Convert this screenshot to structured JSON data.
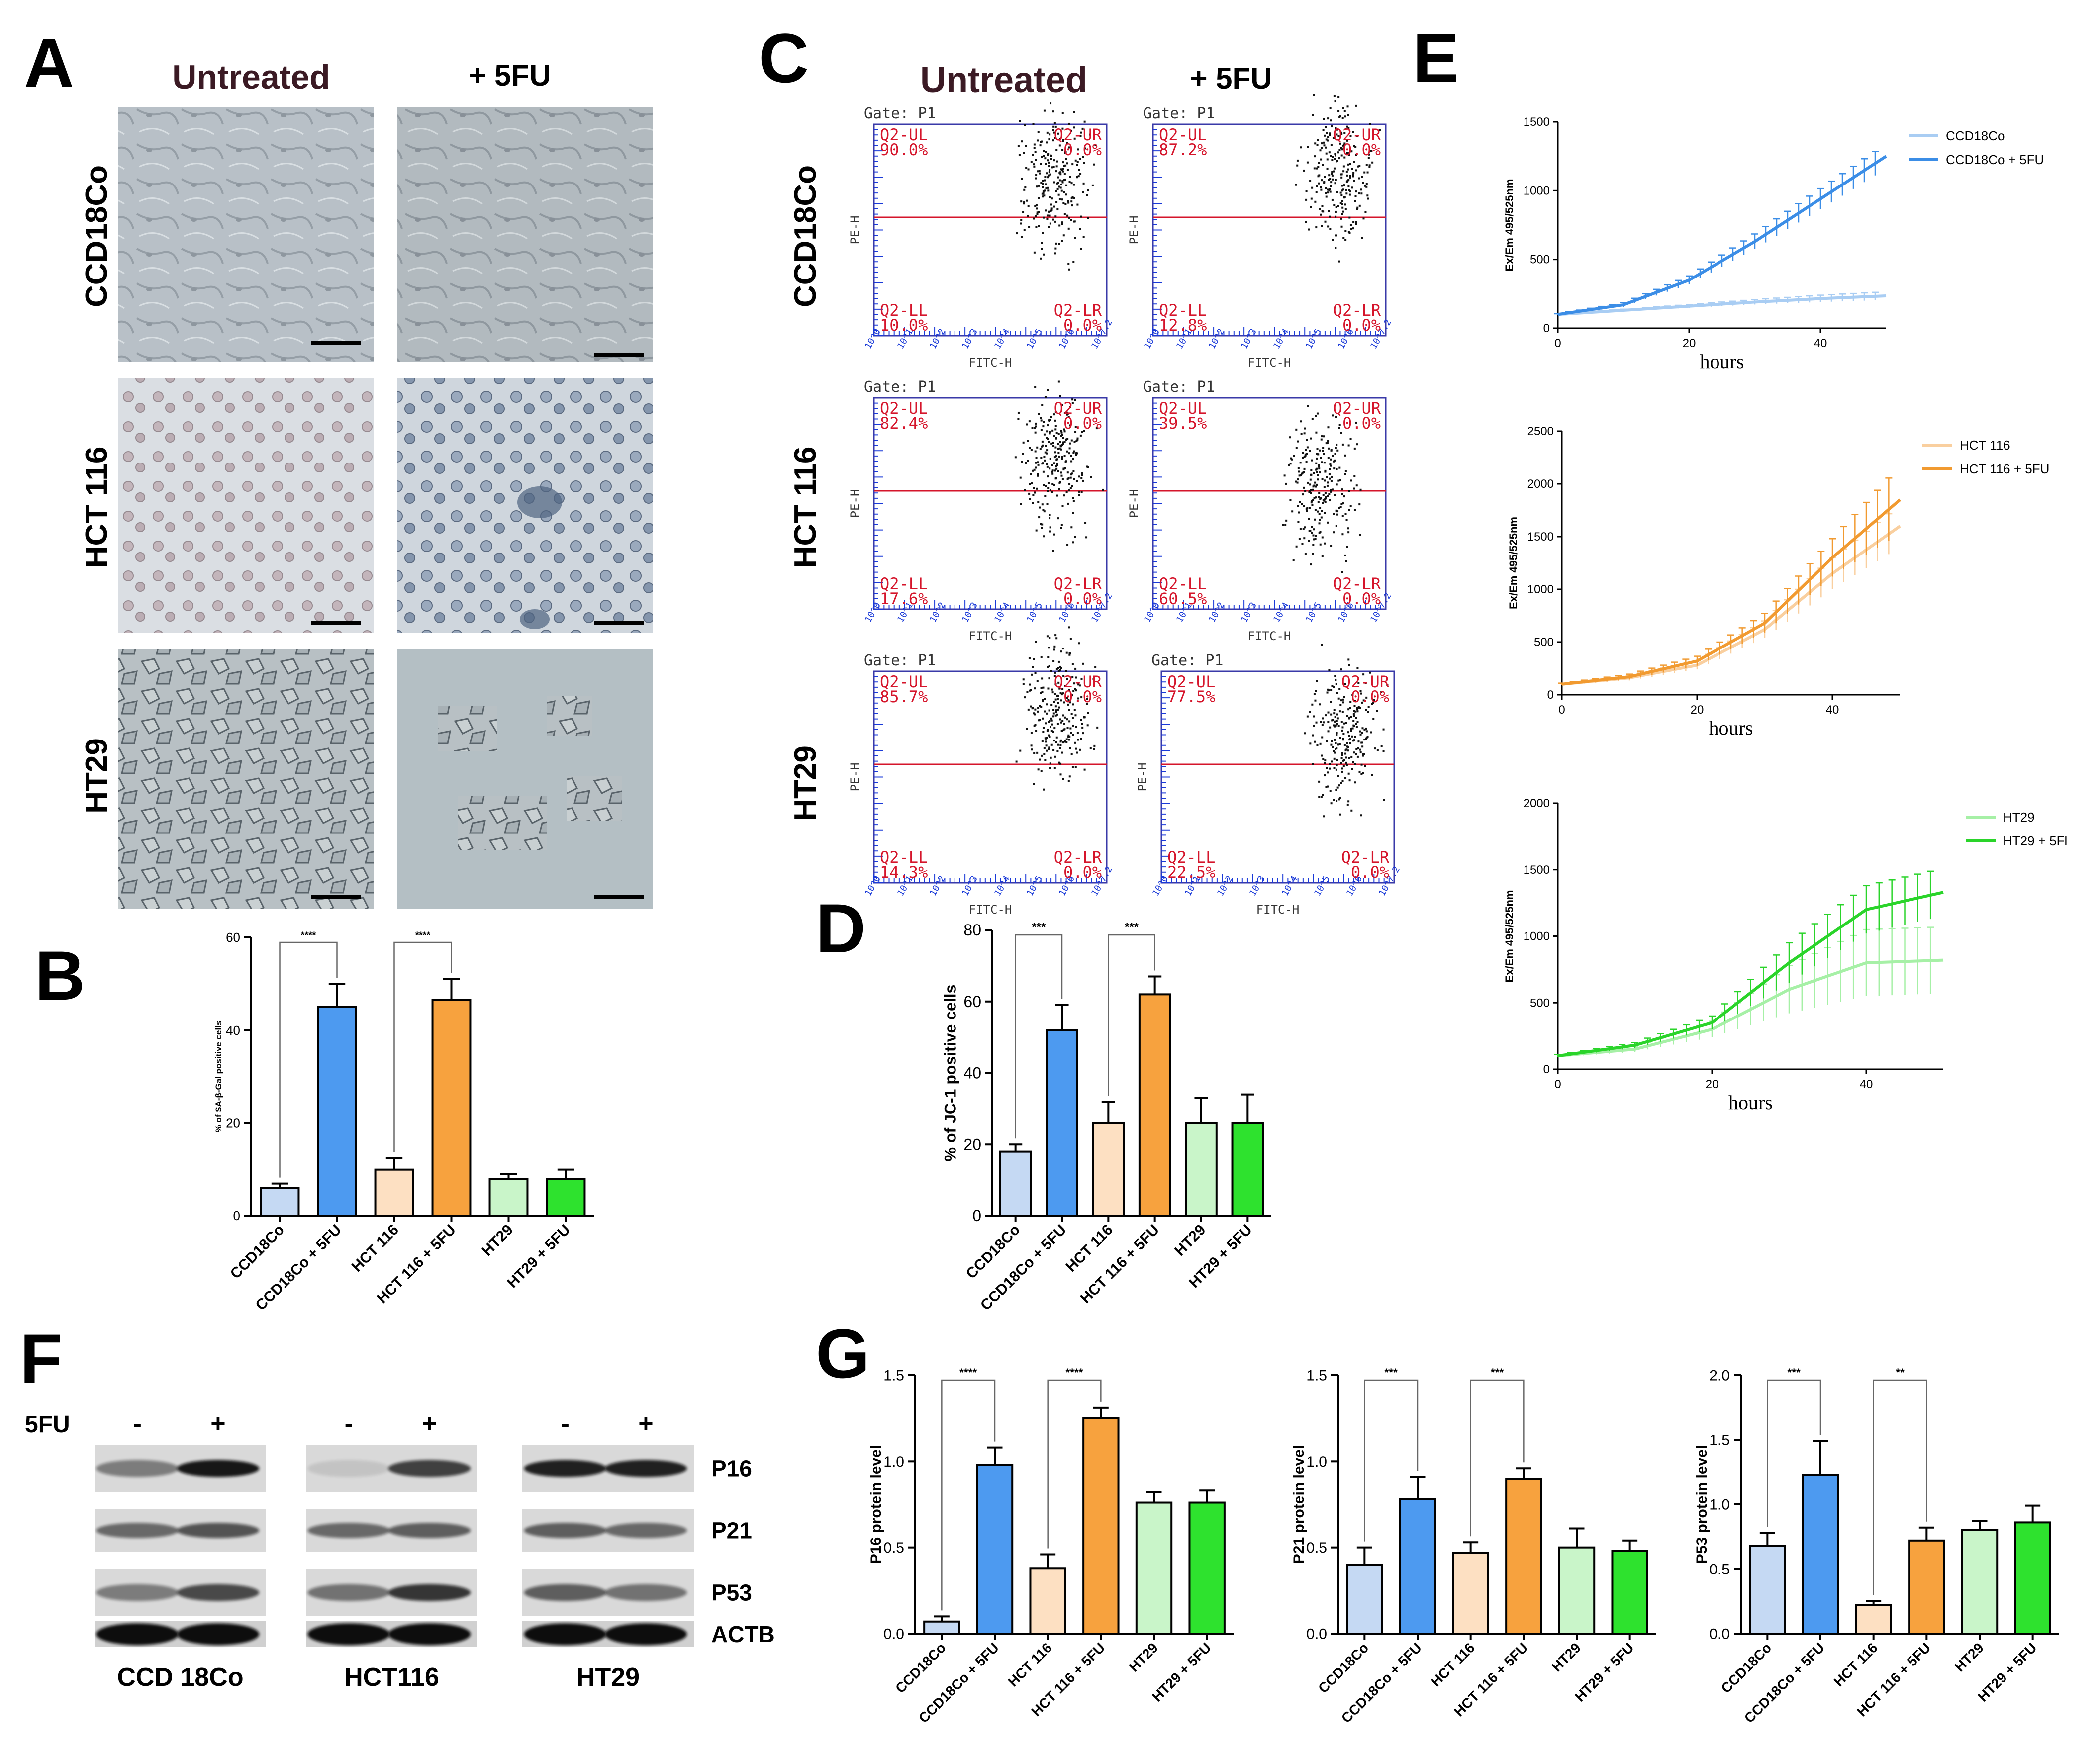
{
  "panels": {
    "A": {
      "letter": "A",
      "col_headers": [
        "Untreated",
        "+ 5FU"
      ],
      "row_labels": [
        "CCD18Co",
        "HCT 116",
        "HT29"
      ]
    },
    "B": {
      "letter": "B"
    },
    "C": {
      "letter": "C",
      "col_headers": [
        "Untreated",
        "+ 5FU"
      ],
      "row_labels": [
        "CCD18Co",
        "HCT 116",
        "HT29"
      ],
      "gate": "Gate: P1",
      "xlabel": "FITC-H",
      "ylabel": "PE-H",
      "quadrant_names": [
        "Q2-UL",
        "Q2-UR",
        "Q2-LL",
        "Q2-LR"
      ],
      "plots": [
        {
          "ul": "90.0%",
          "ur": "0.0%",
          "ll": "10.0%",
          "lr": "0.0%"
        },
        {
          "ul": "87.2%",
          "ur": "0.0%",
          "ll": "12.8%",
          "lr": "0.0%"
        },
        {
          "ul": "82.4%",
          "ur": "0.0%",
          "ll": "17.6%",
          "lr": "0.0%"
        },
        {
          "ul": "39.5%",
          "ur": "0.0%",
          "ll": "60.5%",
          "lr": "0.0%"
        },
        {
          "ul": "85.7%",
          "ur": "0.0%",
          "ll": "14.3%",
          "lr": "0.0%"
        },
        {
          "ul": "77.5%",
          "ur": "0.0%",
          "ll": "22.5%",
          "lr": "0.0%"
        }
      ],
      "xticks": [
        "10^0",
        "10^1",
        "10^2",
        "10^3",
        "10^4",
        "10^5",
        "10^6",
        "10^7.2"
      ]
    },
    "D": {
      "letter": "D"
    },
    "E": {
      "letter": "E"
    },
    "F": {
      "letter": "F",
      "treatment_label": "5FU",
      "signs": [
        "-",
        "+"
      ],
      "proteins": [
        "P16",
        "P21",
        "P53",
        "ACTB"
      ],
      "cell_lines": [
        "CCD 18Co",
        "HCT116",
        "HT29"
      ]
    },
    "G": {
      "letter": "G"
    }
  },
  "colors": {
    "CCD18Co": "#c5d9f3",
    "CCD18Co + 5FU": "#4d9af0",
    "HCT 116": "#fde0c2",
    "HCT 116 + 5FU": "#f7a23e",
    "HT29": "#c9f5c9",
    "HT29 + 5FU": "#2ee22e"
  },
  "chart_data": [
    {
      "id": "B",
      "type": "bar",
      "categories": [
        "CCD18Co",
        "CCD18Co + 5FU",
        "HCT 116",
        "HCT 116 + 5FU",
        "HT29",
        "HT29 + 5FU"
      ],
      "values": [
        6,
        45,
        10,
        46.5,
        8,
        8
      ],
      "errors": [
        1,
        5,
        2.5,
        4.5,
        1,
        2
      ],
      "ylabel": "% of SA-β-Gal positive cells",
      "ylim": [
        0,
        60
      ],
      "yticks": [
        0,
        20,
        40,
        60
      ],
      "significance": [
        {
          "from": 0,
          "to": 1,
          "label": "****"
        },
        {
          "from": 2,
          "to": 3,
          "label": "****"
        }
      ]
    },
    {
      "id": "D",
      "type": "bar",
      "categories": [
        "CCD18Co",
        "CCD18Co + 5FU",
        "HCT 116",
        "HCT 116 + 5FU",
        "HT29",
        "HT29 + 5FU"
      ],
      "values": [
        18,
        52,
        26,
        62,
        26,
        26
      ],
      "errors": [
        2,
        7,
        6,
        5,
        7,
        8
      ],
      "ylabel": "% of JC-1 positive cells",
      "ylim": [
        0,
        80
      ],
      "yticks": [
        0,
        20,
        40,
        60,
        80
      ],
      "significance": [
        {
          "from": 0,
          "to": 1,
          "label": "***"
        },
        {
          "from": 2,
          "to": 3,
          "label": "***"
        }
      ]
    },
    {
      "id": "E1",
      "type": "line",
      "xlabel": "hours",
      "ylabel": "Ex/Em 495/525nm",
      "xlim": [
        0,
        50
      ],
      "ylim": [
        0,
        1500
      ],
      "xticks": [
        0,
        20,
        40
      ],
      "yticks": [
        0,
        500,
        1000,
        1500
      ],
      "series": [
        {
          "name": "CCD18Co",
          "color": "#a9cdf3",
          "x": [
            0,
            10,
            20,
            30,
            40,
            50
          ],
          "values": [
            100,
            130,
            160,
            190,
            215,
            235
          ],
          "err": [
            5,
            8,
            12,
            18,
            25,
            30
          ]
        },
        {
          "name": "CCD18Co + 5FU",
          "color": "#3b8de6",
          "x": [
            0,
            10,
            20,
            30,
            40,
            50
          ],
          "values": [
            100,
            170,
            350,
            630,
            940,
            1250
          ],
          "err": [
            5,
            15,
            30,
            55,
            75,
            90
          ]
        }
      ]
    },
    {
      "id": "E2",
      "type": "line",
      "xlabel": "hours",
      "ylabel": "Ex/Em 495/525nm",
      "xlim": [
        0,
        50
      ],
      "ylim": [
        0,
        2500
      ],
      "xticks": [
        0,
        20,
        40
      ],
      "yticks": [
        0,
        500,
        1000,
        1500,
        2000,
        2500
      ],
      "series": [
        {
          "name": "HCT 116",
          "color": "#f9cf9f",
          "x": [
            0,
            10,
            20,
            30,
            40,
            50
          ],
          "values": [
            100,
            160,
            280,
            620,
            1150,
            1600
          ],
          "err": [
            10,
            25,
            40,
            80,
            150,
            200
          ]
        },
        {
          "name": "HCT 116 + 5FU",
          "color": "#f19a30",
          "x": [
            0,
            10,
            20,
            30,
            40,
            50
          ],
          "values": [
            100,
            170,
            320,
            680,
            1300,
            1850
          ],
          "err": [
            10,
            25,
            45,
            90,
            180,
            320
          ]
        }
      ]
    },
    {
      "id": "E3",
      "type": "line",
      "xlabel": "hours",
      "ylabel": "Ex/Em 495/525nm",
      "xlim": [
        0,
        50
      ],
      "ylim": [
        0,
        2000
      ],
      "xticks": [
        0,
        20,
        40
      ],
      "yticks": [
        0,
        500,
        1000,
        1500,
        2000
      ],
      "series": [
        {
          "name": "HT29",
          "color": "#a6f0a6",
          "x": [
            0,
            10,
            20,
            30,
            40,
            50
          ],
          "values": [
            100,
            150,
            300,
            600,
            800,
            820
          ],
          "err": [
            10,
            20,
            60,
            180,
            250,
            250
          ]
        },
        {
          "name": "HT29 + 5Fl",
          "color": "#2ad42a",
          "x": [
            0,
            10,
            20,
            30,
            40,
            50
          ],
          "values": [
            100,
            180,
            350,
            800,
            1200,
            1330
          ],
          "err": [
            10,
            20,
            50,
            150,
            180,
            180
          ]
        }
      ]
    },
    {
      "id": "G1",
      "type": "bar",
      "categories": [
        "CCD18Co",
        "CCD18Co + 5FU",
        "HCT 116",
        "HCT 116 + 5FU",
        "HT29",
        "HT29 + 5FU"
      ],
      "values": [
        0.07,
        0.98,
        0.38,
        1.25,
        0.76,
        0.76
      ],
      "errors": [
        0.03,
        0.1,
        0.08,
        0.06,
        0.06,
        0.07
      ],
      "ylabel": "P16 protein level",
      "ylim": [
        0,
        1.5
      ],
      "yticks": [
        "0.0",
        "0.5",
        "1.0",
        "1.5"
      ],
      "significance": [
        {
          "from": 0,
          "to": 1,
          "label": "****"
        },
        {
          "from": 2,
          "to": 3,
          "label": "****"
        }
      ]
    },
    {
      "id": "G2",
      "type": "bar",
      "categories": [
        "CCD18Co",
        "CCD18Co + 5FU",
        "HCT 116",
        "HCT 116 + 5FU",
        "HT29",
        "HT29 + 5FU"
      ],
      "values": [
        0.4,
        0.78,
        0.47,
        0.9,
        0.5,
        0.48
      ],
      "errors": [
        0.1,
        0.13,
        0.06,
        0.06,
        0.11,
        0.06
      ],
      "ylabel": "P21 protein level",
      "ylim": [
        0,
        1.5
      ],
      "yticks": [
        "0.0",
        "0.5",
        "1.0",
        "1.5"
      ],
      "significance": [
        {
          "from": 0,
          "to": 1,
          "label": "***"
        },
        {
          "from": 2,
          "to": 3,
          "label": "***"
        }
      ]
    },
    {
      "id": "G3",
      "type": "bar",
      "categories": [
        "CCD18Co",
        "CCD18Co + 5FU",
        "HCT 116",
        "HCT 116 + 5FU",
        "HT29",
        "HT29 + 5FU"
      ],
      "values": [
        0.68,
        1.23,
        0.22,
        0.72,
        0.8,
        0.86
      ],
      "errors": [
        0.1,
        0.26,
        0.03,
        0.1,
        0.07,
        0.13
      ],
      "ylabel": "P53 protein level",
      "ylim": [
        0,
        2.0
      ],
      "yticks": [
        "0.0",
        "0.5",
        "1.0",
        "1.5",
        "2.0"
      ],
      "significance": [
        {
          "from": 0,
          "to": 1,
          "label": "***"
        },
        {
          "from": 2,
          "to": 3,
          "label": "**"
        }
      ]
    }
  ]
}
